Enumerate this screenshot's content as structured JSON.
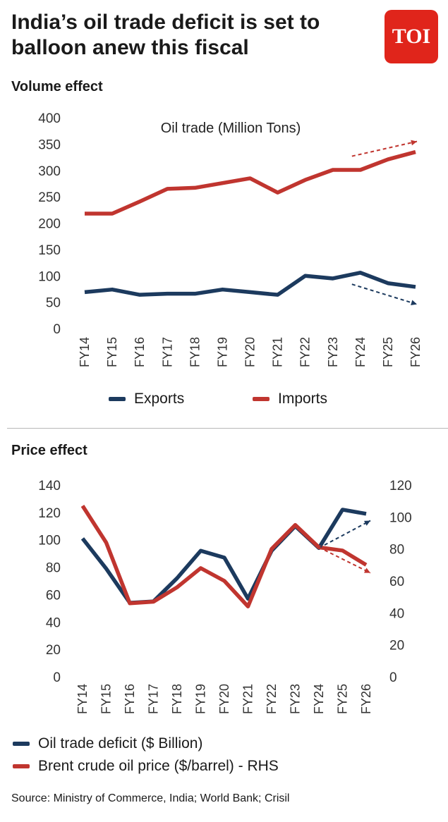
{
  "headline": "India’s oil trade deficit is set to balloon anew this fiscal",
  "logo_text": "TOI",
  "colors": {
    "navy": "#1c3a5e",
    "red": "#c0352f",
    "brand_red": "#e0251b"
  },
  "volume": {
    "section_title": "Volume effect"
  },
  "price": {
    "section_title": "Price effect"
  },
  "source": "Source: Ministry of Commerce, India; World Bank; Crisil",
  "chart_data": [
    {
      "type": "line",
      "title": "Oil trade (Million Tons)",
      "categories": [
        "FY14",
        "FY15",
        "FY16",
        "FY17",
        "FY18",
        "FY19",
        "FY20",
        "FY21",
        "FY22",
        "FY23",
        "FY24",
        "FY25",
        "FY26"
      ],
      "ylim": [
        0,
        400
      ],
      "yticks": [
        0,
        50,
        100,
        150,
        200,
        250,
        300,
        350,
        400
      ],
      "grid": false,
      "legend_position": "bottom",
      "series": [
        {
          "name": "Exports",
          "color": "#1c3a5e",
          "values": [
            69,
            74,
            64,
            66,
            66,
            74,
            69,
            64,
            100,
            95,
            106,
            86,
            79
          ]
        },
        {
          "name": "Imports",
          "color": "#c0352f",
          "values": [
            218,
            218,
            241,
            265,
            267,
            276,
            285,
            258,
            282,
            301,
            301,
            321,
            335
          ]
        }
      ],
      "annotations": [
        {
          "kind": "dashed-arrow",
          "series": "Imports",
          "from": [
            "FY24",
            327
          ],
          "to": [
            "FY26",
            355
          ]
        },
        {
          "kind": "dashed-arrow",
          "series": "Exports",
          "from": [
            "FY24",
            84
          ],
          "to": [
            "FY26",
            46
          ]
        }
      ]
    },
    {
      "type": "line",
      "categories": [
        "FY14",
        "FY15",
        "FY16",
        "FY17",
        "FY18",
        "FY19",
        "FY20",
        "FY21",
        "FY22",
        "FY23",
        "FY24",
        "FY25",
        "FY26"
      ],
      "ylim": [
        0,
        140
      ],
      "yticks": [
        0,
        20,
        40,
        60,
        80,
        100,
        120,
        140
      ],
      "y2lim": [
        0,
        120
      ],
      "y2ticks": [
        0,
        20,
        40,
        60,
        80,
        100,
        120
      ],
      "grid": false,
      "legend_position": "bottom",
      "series": [
        {
          "name": "Oil trade deficit ($ Billion)",
          "axis": "left",
          "color": "#1c3a5e",
          "values": [
            101,
            79,
            54,
            55,
            72,
            92,
            87,
            57,
            92,
            110,
            94,
            122,
            119
          ]
        },
        {
          "name": "Brent crude oil price ($/barrel) - RHS",
          "axis": "right",
          "color": "#c0352f",
          "values": [
            107,
            84,
            46,
            47,
            56,
            68,
            60,
            44,
            80,
            95,
            81,
            79,
            70
          ]
        }
      ],
      "annotations": [
        {
          "kind": "dashed-arrow",
          "series": "Oil trade deficit ($ Billion)",
          "from": [
            "FY24",
            94
          ],
          "to": [
            "FY26",
            114
          ]
        },
        {
          "kind": "dashed-arrow",
          "series": "Brent crude oil price ($/barrel) - RHS",
          "from": [
            "FY24",
            81
          ],
          "to": [
            "FY26",
            65
          ]
        }
      ]
    }
  ]
}
